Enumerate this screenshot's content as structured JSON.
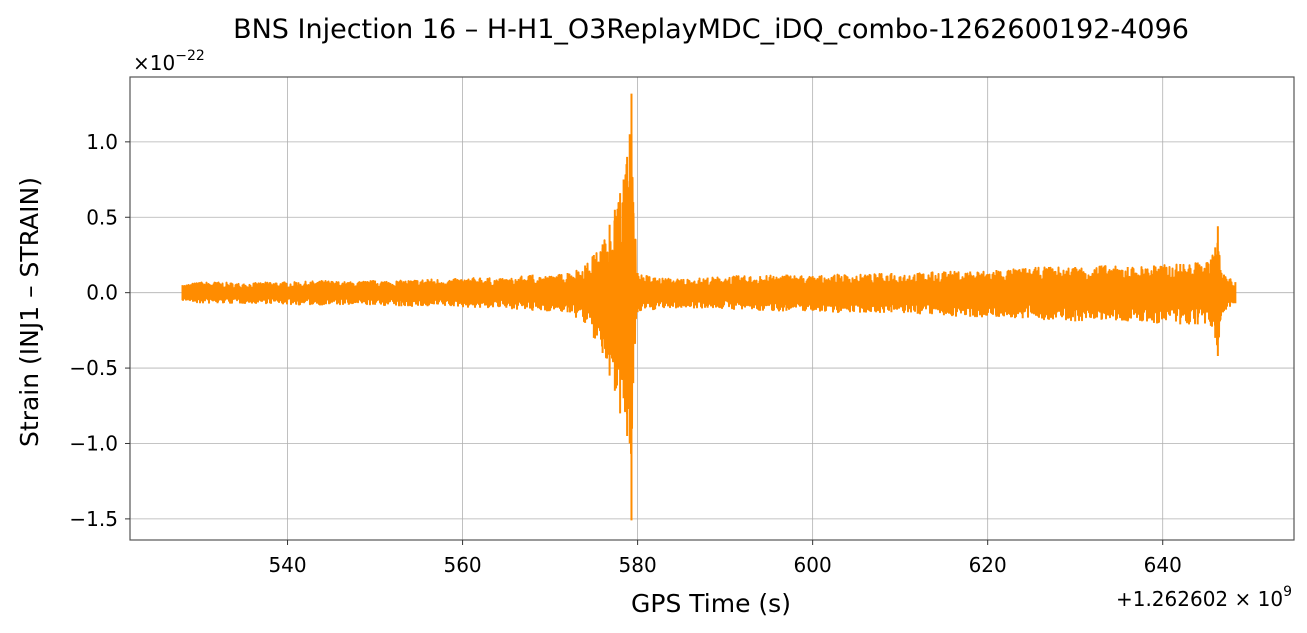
{
  "chart_data": {
    "type": "line",
    "title": "BNS Injection 16 – H-H1_O3ReplayMDC_iDQ_combo-1262600192-4096",
    "xlabel": "GPS Time (s)",
    "ylabel": "Strain (INJ1 – STRAIN)",
    "y_scale_label": {
      "base": "×10",
      "exponent": "−22"
    },
    "x_offset_label": {
      "base": "+1.262602 × 10",
      "exponent": "9"
    },
    "x_offset": 1262602000,
    "y_multiplier": 1e-22,
    "xlim": [
      522,
      655
    ],
    "ylim": [
      -1.64,
      1.43
    ],
    "xticks": [
      540,
      560,
      580,
      600,
      620,
      640
    ],
    "xtick_labels": [
      "540",
      "560",
      "580",
      "600",
      "620",
      "640"
    ],
    "yticks": [
      1.0,
      0.5,
      0.0,
      -0.5,
      -1.0,
      -1.5
    ],
    "ytick_labels": [
      "1.0",
      "0.5",
      "0.0",
      "−0.5",
      "−1.0",
      "−1.5"
    ],
    "grid": true,
    "series": [
      {
        "color": "#ff8c00",
        "x": [
          528,
          530,
          532,
          535,
          538,
          541,
          544,
          547,
          550,
          553,
          556,
          559,
          562,
          565,
          568,
          570,
          572,
          574,
          575,
          576,
          576.8,
          577.4,
          578.0,
          578.4,
          578.8,
          579.1,
          579.3,
          579.5,
          580.0,
          582,
          585,
          588,
          591,
          594,
          597,
          600,
          603,
          606,
          609,
          612,
          615,
          618,
          621,
          624,
          627,
          630,
          633,
          636,
          639,
          642,
          644,
          645.5,
          646.0,
          646.3,
          646.6,
          647,
          648.3
        ],
        "upper": [
          0.05,
          0.07,
          0.07,
          0.06,
          0.07,
          0.07,
          0.08,
          0.07,
          0.08,
          0.08,
          0.09,
          0.09,
          0.1,
          0.09,
          0.12,
          0.11,
          0.13,
          0.18,
          0.25,
          0.32,
          0.45,
          0.55,
          0.66,
          0.75,
          0.9,
          1.05,
          1.32,
          0.6,
          0.13,
          0.1,
          0.09,
          0.1,
          0.11,
          0.11,
          0.12,
          0.11,
          0.12,
          0.12,
          0.13,
          0.13,
          0.14,
          0.14,
          0.15,
          0.16,
          0.17,
          0.17,
          0.18,
          0.17,
          0.18,
          0.19,
          0.2,
          0.22,
          0.3,
          0.44,
          0.15,
          0.12,
          0.07
        ],
        "lower": [
          -0.05,
          -0.07,
          -0.07,
          -0.07,
          -0.07,
          -0.08,
          -0.08,
          -0.08,
          -0.08,
          -0.09,
          -0.09,
          -0.09,
          -0.1,
          -0.1,
          -0.12,
          -0.12,
          -0.13,
          -0.2,
          -0.3,
          -0.4,
          -0.55,
          -0.65,
          -0.8,
          -0.7,
          -0.95,
          -1.0,
          -1.51,
          -0.6,
          -0.13,
          -0.11,
          -0.1,
          -0.1,
          -0.11,
          -0.12,
          -0.12,
          -0.12,
          -0.13,
          -0.13,
          -0.13,
          -0.14,
          -0.15,
          -0.16,
          -0.16,
          -0.17,
          -0.18,
          -0.19,
          -0.18,
          -0.19,
          -0.2,
          -0.21,
          -0.21,
          -0.22,
          -0.3,
          -0.42,
          -0.18,
          -0.12,
          -0.07
        ]
      }
    ]
  }
}
